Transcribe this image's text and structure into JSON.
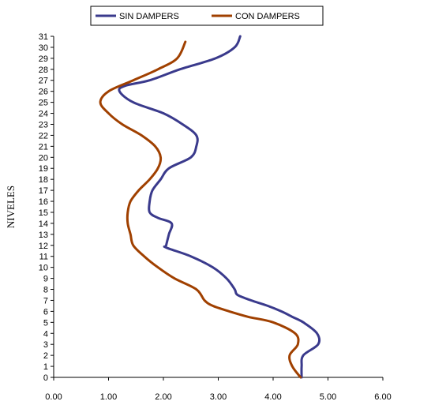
{
  "chart_data": {
    "type": "line",
    "title": "",
    "xlabel": "",
    "ylabel": "NIVELES",
    "xlim": [
      0,
      6
    ],
    "ylim": [
      0,
      31
    ],
    "x_ticks": [
      "0.00",
      "1.00",
      "2.00",
      "3.00",
      "4.00",
      "5.00",
      "6.00"
    ],
    "y_ticks": [
      "0",
      "1",
      "2",
      "3",
      "4",
      "5",
      "6",
      "7",
      "8",
      "9",
      "10",
      "11",
      "12",
      "13",
      "14",
      "15",
      "16",
      "17",
      "18",
      "19",
      "20",
      "21",
      "22",
      "23",
      "24",
      "25",
      "26",
      "27",
      "28",
      "29",
      "30",
      "31"
    ],
    "grid": false,
    "legend_position": "top",
    "series": [
      {
        "name": "SIN DAMPERS",
        "color": "#3a3a8c",
        "x": [
          4.52,
          4.52,
          4.55,
          4.82,
          4.8,
          4.55,
          4.35,
          4.15,
          3.9,
          3.6,
          3.35,
          3.3,
          3.15,
          2.9,
          2.5,
          2.05,
          2.05,
          2.1,
          2.15,
          1.9,
          1.75,
          1.75,
          1.8,
          1.95,
          2.1,
          2.5,
          2.6,
          2.6,
          2.35,
          2.0,
          1.45,
          1.2,
          1.3,
          1.75,
          2.3,
          2.95,
          3.3,
          3.4
        ],
        "y": [
          0,
          1,
          2,
          3,
          4,
          5,
          5.5,
          6,
          6.5,
          7,
          7.5,
          8,
          9,
          10,
          11,
          11.8,
          12,
          13,
          14,
          14.5,
          15,
          16,
          17,
          18,
          19,
          20,
          21,
          22,
          23,
          24,
          25,
          26,
          26.5,
          27,
          28,
          29,
          30,
          31
        ]
      },
      {
        "name": "CON DAMPERS",
        "color": "#a04000",
        "x": [
          4.5,
          4.35,
          4.3,
          4.45,
          4.4,
          4.0,
          3.55,
          3.2,
          2.9,
          2.75,
          2.6,
          2.2,
          1.9,
          1.65,
          1.45,
          1.4,
          1.35,
          1.35,
          1.4,
          1.55,
          1.75,
          1.9,
          1.95,
          1.85,
          1.6,
          1.25,
          1.0,
          0.85,
          1.0,
          1.45,
          1.9,
          2.25,
          2.4
        ],
        "y": [
          0,
          1,
          2,
          3,
          4,
          5,
          5.5,
          6,
          6.5,
          7,
          8,
          9,
          10,
          11,
          12,
          13,
          14,
          15,
          16,
          17,
          18,
          19,
          20,
          21,
          22,
          23,
          24,
          25,
          26,
          27,
          28,
          29,
          30.5
        ]
      }
    ]
  }
}
